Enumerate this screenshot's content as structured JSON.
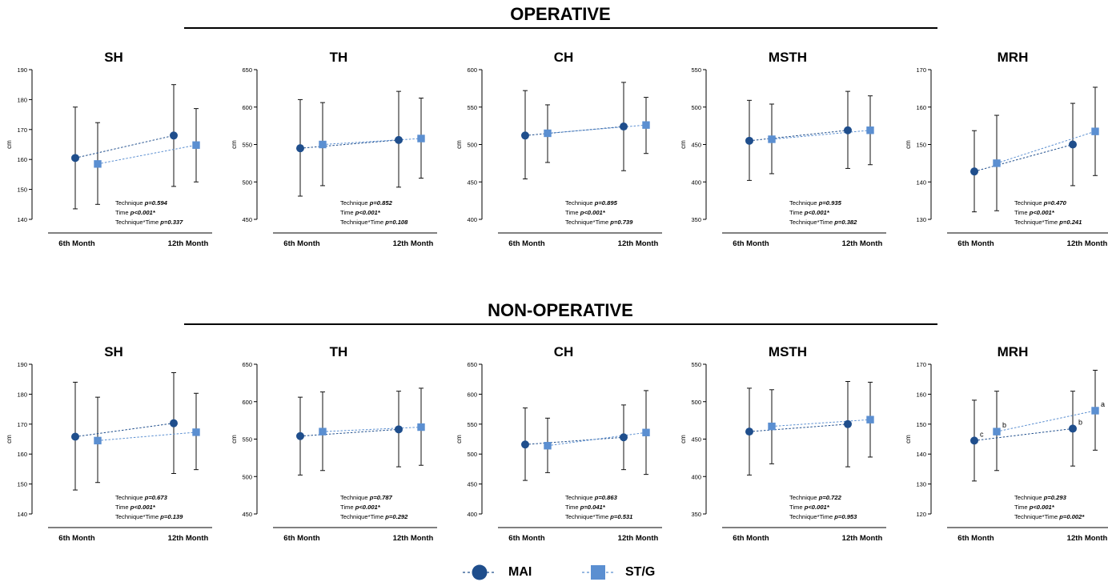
{
  "sections": [
    {
      "title": "OPERATIVE"
    },
    {
      "title": "NON-OPERATIVE"
    }
  ],
  "legend": {
    "mai_label": "MAI",
    "stg_label": "ST/G"
  },
  "colors": {
    "mai": "#1f4e8c",
    "stg": "#5b8fd1",
    "errorbar": "#111111"
  },
  "chart_data": [
    {
      "type": "line",
      "section": "OPERATIVE",
      "title": "SH",
      "ylabel": "cm",
      "categories": [
        "6th Month",
        "12th Month"
      ],
      "ylim": [
        140,
        190
      ],
      "yticks": [
        140,
        150,
        160,
        170,
        180,
        190
      ],
      "series": [
        {
          "name": "MAI",
          "values": [
            160.5,
            168
          ],
          "errors": [
            [
              143.5,
              177.5
            ],
            [
              151,
              185
            ]
          ]
        },
        {
          "name": "ST/G",
          "values": [
            158.5,
            164.8
          ],
          "errors": [
            [
              145,
              172.3
            ],
            [
              152.5,
              177
            ]
          ]
        }
      ],
      "annotations": [],
      "stats": [
        {
          "label": "Technique ",
          "p": "p=0.594"
        },
        {
          "label": "Time ",
          "p": "p<0.001*"
        },
        {
          "label": "Technique*Time ",
          "p": "p=0.337"
        }
      ]
    },
    {
      "type": "line",
      "section": "OPERATIVE",
      "title": "TH",
      "ylabel": "cm",
      "categories": [
        "6th Month",
        "12th Month"
      ],
      "ylim": [
        450,
        650
      ],
      "yticks": [
        450,
        500,
        550,
        600,
        650
      ],
      "series": [
        {
          "name": "MAI",
          "values": [
            545,
            556
          ],
          "errors": [
            [
              481,
              610
            ],
            [
              493,
              621
            ]
          ]
        },
        {
          "name": "ST/G",
          "values": [
            550,
            558
          ],
          "errors": [
            [
              495,
              606
            ],
            [
              505,
              612
            ]
          ]
        }
      ],
      "annotations": [],
      "stats": [
        {
          "label": "Technique ",
          "p": "p=0.852"
        },
        {
          "label": "Time ",
          "p": "p<0.001*"
        },
        {
          "label": "Technique*Time ",
          "p": "p=0.108"
        }
      ]
    },
    {
      "type": "line",
      "section": "OPERATIVE",
      "title": "CH",
      "ylabel": "cm",
      "categories": [
        "6th Month",
        "12th Month"
      ],
      "ylim": [
        400,
        600
      ],
      "yticks": [
        400,
        450,
        500,
        550,
        600
      ],
      "series": [
        {
          "name": "MAI",
          "values": [
            512,
            524
          ],
          "errors": [
            [
              454,
              572
            ],
            [
              465,
              583
            ]
          ]
        },
        {
          "name": "ST/G",
          "values": [
            515,
            526
          ],
          "errors": [
            [
              476,
              553
            ],
            [
              488,
              563
            ]
          ]
        }
      ],
      "annotations": [],
      "stats": [
        {
          "label": "Technique ",
          "p": "p=0.895"
        },
        {
          "label": "Time ",
          "p": "p<0.001*"
        },
        {
          "label": "Technique*Time ",
          "p": "p=0.739"
        }
      ]
    },
    {
      "type": "line",
      "section": "OPERATIVE",
      "title": "MSTH",
      "ylabel": "cm",
      "categories": [
        "6th Month",
        "12th Month"
      ],
      "ylim": [
        350,
        550
      ],
      "yticks": [
        350,
        400,
        450,
        500,
        550
      ],
      "series": [
        {
          "name": "MAI",
          "values": [
            455,
            469
          ],
          "errors": [
            [
              402,
              509
            ],
            [
              418,
              521
            ]
          ]
        },
        {
          "name": "ST/G",
          "values": [
            457,
            469
          ],
          "errors": [
            [
              411,
              504
            ],
            [
              423,
              515
            ]
          ]
        }
      ],
      "annotations": [],
      "stats": [
        {
          "label": "Technique ",
          "p": "p=0.935"
        },
        {
          "label": "Time ",
          "p": "p<0.001*"
        },
        {
          "label": "Technique*Time ",
          "p": "p=0.382"
        }
      ]
    },
    {
      "type": "line",
      "section": "OPERATIVE",
      "title": "MRH",
      "ylabel": "cm",
      "categories": [
        "6th Month",
        "12th Month"
      ],
      "ylim": [
        130,
        170
      ],
      "yticks": [
        130,
        140,
        150,
        160,
        170
      ],
      "series": [
        {
          "name": "MAI",
          "values": [
            142.8,
            150
          ],
          "errors": [
            [
              132,
              153.7
            ],
            [
              139,
              161
            ]
          ]
        },
        {
          "name": "ST/G",
          "values": [
            145,
            153.5
          ],
          "errors": [
            [
              132.3,
              157.8
            ],
            [
              141.7,
              165.3
            ]
          ]
        }
      ],
      "annotations": [],
      "stats": [
        {
          "label": "Technique ",
          "p": "p=0.470"
        },
        {
          "label": "Time ",
          "p": "p<0.001*"
        },
        {
          "label": "Technique*Time ",
          "p": "p=0.241"
        }
      ]
    },
    {
      "type": "line",
      "section": "NON-OPERATIVE",
      "title": "SH",
      "ylabel": "cm",
      "categories": [
        "6th Month",
        "12th Month"
      ],
      "ylim": [
        140,
        190
      ],
      "yticks": [
        140,
        150,
        160,
        170,
        180,
        190
      ],
      "series": [
        {
          "name": "MAI",
          "values": [
            165.8,
            170.3
          ],
          "errors": [
            [
              148,
              184
            ],
            [
              153.5,
              187.2
            ]
          ]
        },
        {
          "name": "ST/G",
          "values": [
            164.5,
            167.3
          ],
          "errors": [
            [
              150.5,
              179
            ],
            [
              154.8,
              180.3
            ]
          ]
        }
      ],
      "annotations": [],
      "stats": [
        {
          "label": "Technique ",
          "p": "p=0.673"
        },
        {
          "label": "Time ",
          "p": "p<0.001*"
        },
        {
          "label": "Technique*Time ",
          "p": "p=0.139"
        }
      ]
    },
    {
      "type": "line",
      "section": "NON-OPERATIVE",
      "title": "TH",
      "ylabel": "cm",
      "categories": [
        "6th Month",
        "12th Month"
      ],
      "ylim": [
        450,
        650
      ],
      "yticks": [
        450,
        500,
        550,
        600,
        650
      ],
      "series": [
        {
          "name": "MAI",
          "values": [
            554,
            563
          ],
          "errors": [
            [
              502,
              606
            ],
            [
              513,
              614
            ]
          ]
        },
        {
          "name": "ST/G",
          "values": [
            560,
            566
          ],
          "errors": [
            [
              508,
              613
            ],
            [
              515,
              618
            ]
          ]
        }
      ],
      "annotations": [],
      "stats": [
        {
          "label": "Technique ",
          "p": "p=0.787"
        },
        {
          "label": "Time ",
          "p": "p<0.001*"
        },
        {
          "label": "Technique*Time ",
          "p": "p=0.292"
        }
      ]
    },
    {
      "type": "line",
      "section": "NON-OPERATIVE",
      "title": "CH",
      "ylabel": "cm",
      "categories": [
        "6th Month",
        "12th Month"
      ],
      "ylim": [
        400,
        650
      ],
      "yticks": [
        400,
        450,
        500,
        550,
        600,
        650
      ],
      "series": [
        {
          "name": "MAI",
          "values": [
            516,
            528
          ],
          "errors": [
            [
              456,
              577
            ],
            [
              474,
              582
            ]
          ]
        },
        {
          "name": "ST/G",
          "values": [
            514,
            536
          ],
          "errors": [
            [
              469,
              560
            ],
            [
              466,
              606
            ]
          ]
        }
      ],
      "annotations": [],
      "stats": [
        {
          "label": "Technique ",
          "p": "p=0.863"
        },
        {
          "label": "Time ",
          "p": "p=0.041*"
        },
        {
          "label": "Technique*Time ",
          "p": "p=0.531"
        }
      ]
    },
    {
      "type": "line",
      "section": "NON-OPERATIVE",
      "title": "MSTH",
      "ylabel": "cm",
      "categories": [
        "6th Month",
        "12th Month"
      ],
      "ylim": [
        350,
        550
      ],
      "yticks": [
        350,
        400,
        450,
        500,
        550
      ],
      "series": [
        {
          "name": "MAI",
          "values": [
            460,
            470
          ],
          "errors": [
            [
              402,
              518
            ],
            [
              413,
              527
            ]
          ]
        },
        {
          "name": "ST/G",
          "values": [
            467,
            476
          ],
          "errors": [
            [
              417,
              516
            ],
            [
              426,
              526
            ]
          ]
        }
      ],
      "annotations": [],
      "stats": [
        {
          "label": "Technique ",
          "p": "p=0.722"
        },
        {
          "label": "Time ",
          "p": "p<0.001*"
        },
        {
          "label": "Technique*Time ",
          "p": "p=0.953"
        }
      ]
    },
    {
      "type": "line",
      "section": "NON-OPERATIVE",
      "title": "MRH",
      "ylabel": "cm",
      "categories": [
        "6th Month",
        "12th Month"
      ],
      "ylim": [
        120,
        170
      ],
      "yticks": [
        120,
        130,
        140,
        150,
        160,
        170
      ],
      "series": [
        {
          "name": "MAI",
          "values": [
            144.5,
            148.5
          ],
          "errors": [
            [
              131,
              158
            ],
            [
              136,
              161
            ]
          ]
        },
        {
          "name": "ST/G",
          "values": [
            147.5,
            154.5
          ],
          "errors": [
            [
              134.5,
              161
            ],
            [
              141.3,
              168
            ]
          ]
        }
      ],
      "annotations": [
        {
          "series": 0,
          "point": 0,
          "text": "c"
        },
        {
          "series": 1,
          "point": 0,
          "text": "b"
        },
        {
          "series": 0,
          "point": 1,
          "text": "b"
        },
        {
          "series": 1,
          "point": 1,
          "text": "a"
        }
      ],
      "stats": [
        {
          "label": "Technique ",
          "p": "p=0.293"
        },
        {
          "label": "Time ",
          "p": "p<0.001*"
        },
        {
          "label": "Technique*Time ",
          "p": "p=0.002*"
        }
      ]
    }
  ]
}
